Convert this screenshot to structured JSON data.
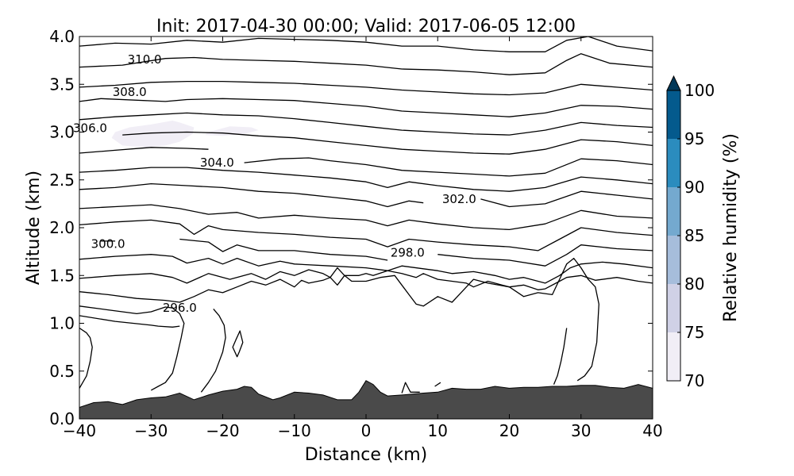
{
  "chart_data": {
    "type": "contour",
    "title": "Init: 2017-04-30 00:00; Valid: 2017-06-05 12:00",
    "xlabel": "Distance (km)",
    "ylabel": "Altitude (km)",
    "xlim": [
      -40,
      40
    ],
    "ylim": [
      0.0,
      4.0
    ],
    "x_ticks": [
      "−40",
      "−30",
      "−20",
      "−10",
      "0",
      "10",
      "20",
      "30",
      "40"
    ],
    "y_ticks": [
      "0.0",
      "0.5",
      "1.0",
      "1.5",
      "2.0",
      "2.5",
      "3.0",
      "3.5",
      "4.0"
    ],
    "grid": false,
    "colorbar": {
      "label": "Relative humidity (%)",
      "ticks": [
        "70",
        "75",
        "80",
        "85",
        "90",
        "95",
        "100"
      ],
      "levels": [
        70,
        75,
        80,
        85,
        90,
        95,
        100
      ],
      "colors": [
        "#f1eef6",
        "#d0d1e6",
        "#a6bddb",
        "#74a9cf",
        "#2b8cbe",
        "#045a8d",
        "#023858"
      ],
      "extend": "max"
    },
    "terrain": {
      "color": "#4a4a4a",
      "x": [
        -40,
        -38,
        -36,
        -34,
        -32,
        -30,
        -28,
        -26,
        -24,
        -22,
        -20,
        -18,
        -17,
        -16,
        -15,
        -13,
        -12,
        -10,
        -8,
        -6,
        -4,
        -2,
        -1,
        0,
        1,
        2,
        3,
        5,
        8,
        10,
        12,
        14,
        16,
        18,
        20,
        22,
        24,
        26,
        28,
        30,
        32,
        34,
        36,
        38,
        40
      ],
      "y": [
        0.12,
        0.17,
        0.18,
        0.15,
        0.2,
        0.22,
        0.23,
        0.27,
        0.2,
        0.25,
        0.29,
        0.31,
        0.34,
        0.33,
        0.26,
        0.2,
        0.22,
        0.28,
        0.27,
        0.25,
        0.2,
        0.2,
        0.28,
        0.4,
        0.36,
        0.28,
        0.24,
        0.25,
        0.27,
        0.28,
        0.32,
        0.31,
        0.31,
        0.34,
        0.32,
        0.33,
        0.33,
        0.34,
        0.34,
        0.35,
        0.35,
        0.33,
        0.32,
        0.36,
        0.32
      ]
    },
    "contour_labels": [
      {
        "text": "310.0",
        "x": -30.9,
        "y": 3.76
      },
      {
        "text": "308.0",
        "x": -33.0,
        "y": 3.42
      },
      {
        "text": "306.0",
        "x": -38.5,
        "y": 3.04
      },
      {
        "text": "304.0",
        "x": -20.8,
        "y": 2.68
      },
      {
        "text": "302.0",
        "x": 13.0,
        "y": 2.3
      },
      {
        "text": "300.0",
        "x": -36.0,
        "y": 1.83
      },
      {
        "text": "298.0",
        "x": 5.8,
        "y": 1.74
      },
      {
        "text": "296.0",
        "x": -26.0,
        "y": 1.16
      }
    ],
    "contours": [
      {
        "x": [
          -40,
          -35,
          -30,
          -25,
          -20,
          -15,
          -10,
          -5,
          0,
          5,
          10,
          15,
          20,
          25,
          28,
          31,
          35,
          40
        ],
        "y": [
          3.9,
          3.93,
          3.92,
          3.96,
          3.94,
          3.98,
          3.97,
          3.96,
          3.94,
          3.9,
          3.9,
          3.86,
          3.84,
          3.84,
          3.96,
          4.0,
          3.9,
          3.85
        ]
      },
      {
        "x": [
          -40,
          -34,
          -28,
          -24,
          -20,
          -15,
          -10,
          -5,
          0,
          5,
          10,
          15,
          20,
          25,
          28,
          30,
          34,
          40
        ],
        "y": [
          3.68,
          3.7,
          3.77,
          3.78,
          3.76,
          3.75,
          3.74,
          3.72,
          3.7,
          3.66,
          3.65,
          3.63,
          3.6,
          3.62,
          3.75,
          3.82,
          3.72,
          3.68
        ]
      },
      {
        "x": [
          -40,
          -35,
          -30,
          -25,
          -20,
          -15,
          -10,
          -5,
          0,
          5,
          10,
          15,
          20,
          25,
          30,
          35,
          40
        ],
        "y": [
          3.47,
          3.49,
          3.52,
          3.53,
          3.53,
          3.52,
          3.51,
          3.49,
          3.47,
          3.44,
          3.42,
          3.4,
          3.39,
          3.41,
          3.5,
          3.47,
          3.44
        ]
      },
      {
        "x": [
          -40,
          -37,
          -28,
          -25,
          -20,
          -15,
          -10,
          -5,
          0,
          5,
          10,
          15,
          20,
          25,
          30,
          35,
          40
        ],
        "y": [
          3.32,
          3.35,
          3.32,
          3.34,
          3.35,
          3.34,
          3.33,
          3.3,
          3.27,
          3.22,
          3.2,
          3.18,
          3.16,
          3.2,
          3.28,
          3.27,
          3.24
        ]
      },
      {
        "x": [
          -40,
          -35,
          -30,
          -25,
          -20,
          -15,
          -10,
          -5,
          0,
          5,
          10,
          15,
          20,
          25,
          30,
          35,
          40
        ],
        "y": [
          3.13,
          3.16,
          3.18,
          3.2,
          3.18,
          3.17,
          3.14,
          3.1,
          3.06,
          3.02,
          3.0,
          2.98,
          2.97,
          3.02,
          3.1,
          3.07,
          3.05
        ]
      },
      {
        "x": [
          -34,
          -30,
          -25,
          -20,
          -15,
          -10,
          -5,
          0,
          5,
          10,
          15,
          20,
          25,
          30,
          35,
          40
        ],
        "y": [
          2.97,
          2.99,
          3.0,
          2.99,
          2.96,
          2.94,
          2.9,
          2.86,
          2.82,
          2.8,
          2.78,
          2.77,
          2.82,
          2.92,
          2.9,
          2.86
        ]
      },
      {
        "x": [
          -40,
          -35,
          -30,
          -25,
          -22
        ],
        "y": [
          2.78,
          2.81,
          2.84,
          2.83,
          2.82
        ]
      },
      {
        "x": [
          -17,
          -12,
          -8,
          -5,
          0,
          5,
          10,
          15,
          20,
          25,
          30,
          35,
          40
        ],
        "y": [
          2.68,
          2.72,
          2.73,
          2.7,
          2.66,
          2.6,
          2.58,
          2.56,
          2.54,
          2.57,
          2.72,
          2.7,
          2.66
        ]
      },
      {
        "x": [
          -40,
          -35,
          -30,
          -25,
          -20,
          -15,
          -10,
          -5,
          0,
          3,
          6,
          10,
          15,
          20,
          25,
          30,
          35,
          40
        ],
        "y": [
          2.58,
          2.6,
          2.63,
          2.63,
          2.6,
          2.58,
          2.55,
          2.52,
          2.48,
          2.42,
          2.48,
          2.44,
          2.4,
          2.38,
          2.42,
          2.53,
          2.5,
          2.46
        ]
      },
      {
        "x": [
          -40,
          -35,
          -30,
          -25,
          -20,
          -15,
          -10,
          -5,
          0,
          3,
          6,
          8
        ],
        "y": [
          2.4,
          2.42,
          2.46,
          2.44,
          2.42,
          2.38,
          2.36,
          2.32,
          2.28,
          2.22,
          2.28,
          2.26
        ]
      },
      {
        "x": [
          16,
          20,
          25,
          30,
          35,
          40
        ],
        "y": [
          2.3,
          2.22,
          2.25,
          2.38,
          2.34,
          2.3
        ]
      },
      {
        "x": [
          -40,
          -35,
          -30,
          -26,
          -22,
          -18,
          -15,
          -10,
          -5,
          0,
          3,
          6,
          10,
          15,
          20,
          25,
          30,
          35,
          40
        ],
        "y": [
          2.2,
          2.22,
          2.24,
          2.2,
          2.14,
          2.16,
          2.1,
          2.13,
          2.1,
          2.08,
          2.02,
          2.08,
          2.04,
          2.0,
          1.98,
          2.04,
          2.18,
          2.12,
          2.1
        ]
      },
      {
        "x": [
          -40,
          -35,
          -30,
          -26,
          -24,
          -22,
          -20,
          -15,
          -10,
          -5,
          0,
          3,
          6,
          10,
          15,
          20,
          24,
          27,
          30,
          35,
          40
        ],
        "y": [
          2.03,
          2.06,
          2.08,
          2.04,
          1.93,
          2.02,
          1.98,
          1.95,
          1.93,
          1.9,
          1.88,
          1.8,
          1.88,
          1.85,
          1.82,
          1.8,
          1.76,
          1.88,
          2.0,
          1.95,
          1.92
        ]
      },
      {
        "x": [
          -37,
          -35
        ],
        "y": [
          1.86,
          1.86
        ]
      },
      {
        "x": [
          -26,
          -22,
          -20,
          -18,
          -15,
          -10,
          -5,
          0,
          3
        ],
        "y": [
          1.88,
          1.85,
          1.75,
          1.82,
          1.76,
          1.76,
          1.72,
          1.7,
          1.66
        ]
      },
      {
        "x": [
          10,
          15,
          20,
          25,
          28,
          30,
          35,
          40
        ],
        "y": [
          1.72,
          1.68,
          1.66,
          1.6,
          1.72,
          1.82,
          1.78,
          1.76
        ]
      },
      {
        "x": [
          -40,
          -35,
          -30,
          -27,
          -25,
          -22,
          -20,
          -18,
          -15,
          -12,
          -10,
          -5,
          0,
          3,
          5,
          8,
          10,
          12,
          15,
          18,
          20,
          22,
          25,
          27,
          28.5,
          30,
          33,
          36,
          40
        ],
        "y": [
          1.67,
          1.7,
          1.72,
          1.7,
          1.63,
          1.68,
          1.62,
          1.68,
          1.6,
          1.65,
          1.62,
          1.6,
          1.58,
          1.55,
          1.6,
          1.57,
          1.55,
          1.52,
          1.54,
          1.5,
          1.46,
          1.48,
          1.42,
          1.5,
          1.58,
          1.62,
          1.64,
          1.62,
          1.58
        ]
      },
      {
        "x": [
          -40,
          -35,
          -30,
          -27,
          -25,
          -22,
          -19,
          -16,
          -14,
          -12,
          -10,
          -8,
          -6,
          -5,
          -4,
          -3,
          -1,
          0,
          1,
          3,
          5,
          7,
          8,
          10,
          12,
          14,
          15,
          17,
          20,
          22,
          24,
          25,
          27,
          28,
          30,
          32,
          35,
          38,
          40
        ],
        "y": [
          1.47,
          1.5,
          1.52,
          1.48,
          1.42,
          1.52,
          1.46,
          1.52,
          1.46,
          1.54,
          1.5,
          1.56,
          1.52,
          1.48,
          1.58,
          1.5,
          1.5,
          1.52,
          1.5,
          1.55,
          1.52,
          1.48,
          1.52,
          1.46,
          1.44,
          1.42,
          1.38,
          1.44,
          1.38,
          1.4,
          1.35,
          1.36,
          1.44,
          1.48,
          1.5,
          1.45,
          1.48,
          1.44,
          1.42
        ]
      },
      {
        "x": [
          -40,
          -36,
          -32,
          -28,
          -26,
          -24,
          -22,
          -20,
          -18,
          -16,
          -14,
          -12,
          -10,
          -9,
          -8,
          -6,
          -5,
          -4,
          -3,
          -2,
          0,
          2,
          4,
          6,
          7,
          8,
          10,
          12,
          13,
          15,
          17,
          20,
          22,
          24,
          26,
          27,
          28,
          29,
          30,
          31,
          32,
          32.5,
          32.2,
          31.5,
          30.5,
          29.5
        ],
        "y": [
          1.33,
          1.3,
          1.26,
          1.24,
          1.22,
          1.28,
          1.35,
          1.32,
          1.38,
          1.44,
          1.4,
          1.46,
          1.38,
          1.45,
          1.42,
          1.45,
          1.48,
          1.4,
          1.5,
          1.44,
          1.44,
          1.48,
          1.5,
          1.3,
          1.2,
          1.18,
          1.28,
          1.22,
          1.3,
          1.46,
          1.42,
          1.38,
          1.28,
          1.32,
          1.3,
          1.46,
          1.62,
          1.68,
          1.58,
          1.46,
          1.38,
          1.2,
          0.8,
          0.55,
          0.45,
          0.4
        ]
      },
      {
        "x": [
          28,
          27.6,
          27.2,
          26.7,
          26.2
        ],
        "y": [
          0.95,
          0.75,
          0.6,
          0.45,
          0.36
        ]
      },
      {
        "x": [
          -40,
          -36,
          -32,
          -30,
          -28,
          -27,
          -26,
          -25.4,
          -25.8,
          -26.4,
          -27,
          -28,
          -29,
          -30
        ],
        "y": [
          1.18,
          1.14,
          1.1,
          1.12,
          1.17,
          1.16,
          1.1,
          1.0,
          0.85,
          0.65,
          0.48,
          0.38,
          0.34,
          0.3
        ]
      },
      {
        "x": [
          -40,
          -35,
          -30,
          -29,
          -27,
          -26
        ],
        "y": [
          1.08,
          1.02,
          0.98,
          0.97,
          0.96,
          0.97
        ]
      },
      {
        "x": [
          -40,
          -39,
          -38.5,
          -38.2,
          -38.5,
          -39,
          -40
        ],
        "y": [
          0.95,
          0.9,
          0.85,
          0.75,
          0.6,
          0.45,
          0.32
        ]
      },
      {
        "x": [
          -21.3,
          -20.5,
          -19.8,
          -19.6,
          -20,
          -21,
          -22,
          -23
        ],
        "y": [
          1.15,
          1.08,
          0.98,
          0.85,
          0.7,
          0.5,
          0.38,
          0.28
        ]
      },
      {
        "x": [
          -18.2,
          -17.6,
          -17.2,
          -17.7,
          -18,
          -18.6,
          -18.2
        ],
        "y": [
          0.82,
          0.92,
          0.8,
          0.7,
          0.65,
          0.75,
          0.82
        ]
      },
      {
        "x": [
          5,
          5.5,
          6.2,
          7.5
        ],
        "y": [
          0.27,
          0.38,
          0.28,
          0.28
        ]
      },
      {
        "x": [
          9.6,
          10.4
        ],
        "y": [
          0.34,
          0.38
        ]
      }
    ],
    "rh_patches": [
      {
        "level": 70,
        "x": [
          -35,
          -33,
          -30,
          -27,
          -26,
          -24,
          -24.2,
          -26,
          -28,
          -31,
          -34,
          -35.5
        ],
        "y": [
          3.0,
          3.05,
          3.08,
          3.12,
          3.1,
          3.05,
          2.98,
          2.9,
          2.86,
          2.84,
          2.86,
          2.94
        ]
      },
      {
        "level": 70,
        "x": [
          -22,
          -19,
          -16,
          -15,
          -17,
          -20,
          -22.5
        ],
        "y": [
          3.0,
          3.06,
          3.05,
          3.02,
          2.98,
          2.96,
          2.97
        ]
      }
    ]
  }
}
